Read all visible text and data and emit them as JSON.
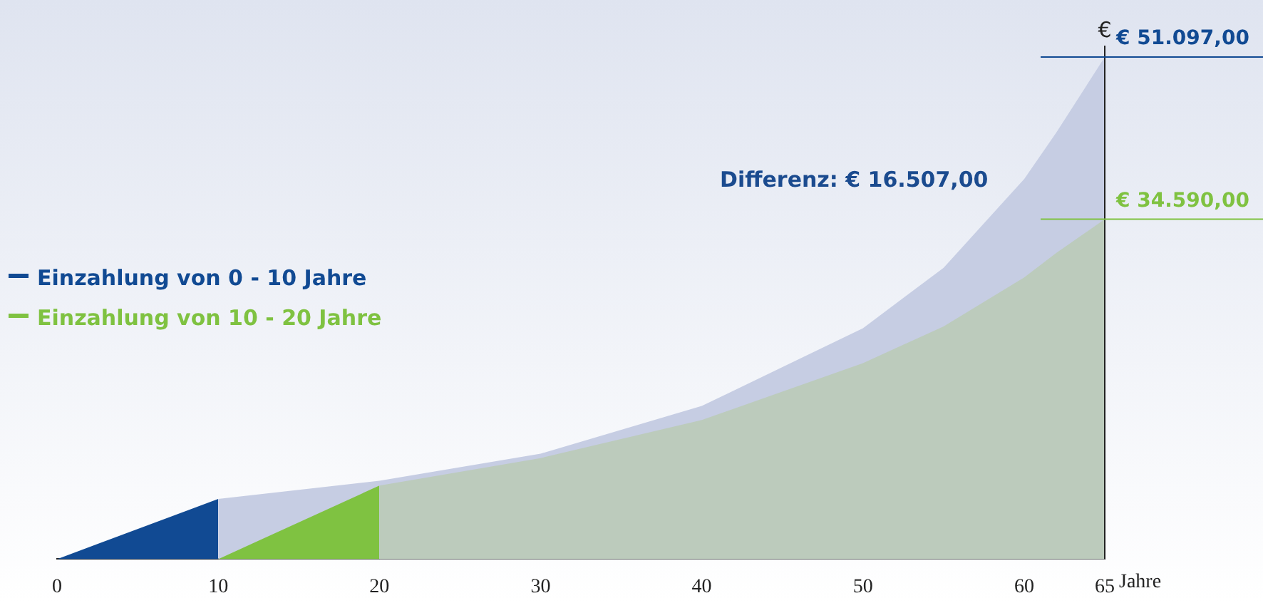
{
  "chart_data": {
    "type": "area",
    "xlabel": "Jahre",
    "ylabel": "€",
    "xlim": [
      0,
      65
    ],
    "xticks": [
      0,
      10,
      20,
      30,
      40,
      50,
      60,
      65
    ],
    "legend": "left",
    "series": [
      {
        "name": "Einzahlung von 0 - 10 Jahre",
        "color": "#114a93",
        "x": [
          0,
          10
        ],
        "values": [
          0,
          6130
        ]
      },
      {
        "color": "#c6cde3",
        "x": [
          10,
          20,
          30,
          40,
          50,
          55,
          60,
          62,
          65
        ],
        "values": [
          6130,
          7970,
          10730,
          15580,
          23500,
          29640,
          38680,
          43430,
          51097
        ],
        "value_labels": [
          null,
          null,
          null,
          null,
          null,
          null,
          null,
          null,
          "€ 51.097,00"
        ]
      },
      {
        "name": "Einzahlung von 10 - 20 Jahre",
        "color": "#7fc241",
        "x": [
          10,
          20
        ],
        "values": [
          0,
          7480
        ]
      },
      {
        "color": "#bccbbc",
        "x": [
          20,
          30,
          40,
          50,
          55,
          60,
          62,
          65
        ],
        "values": [
          7480,
          10280,
          14150,
          19940,
          23680,
          28670,
          31160,
          34590
        ],
        "value_labels": [
          null,
          null,
          null,
          null,
          null,
          null,
          null,
          "€ 34.590,00"
        ]
      }
    ],
    "annotations": [
      "Differenz: € 16.507,00"
    ]
  }
}
